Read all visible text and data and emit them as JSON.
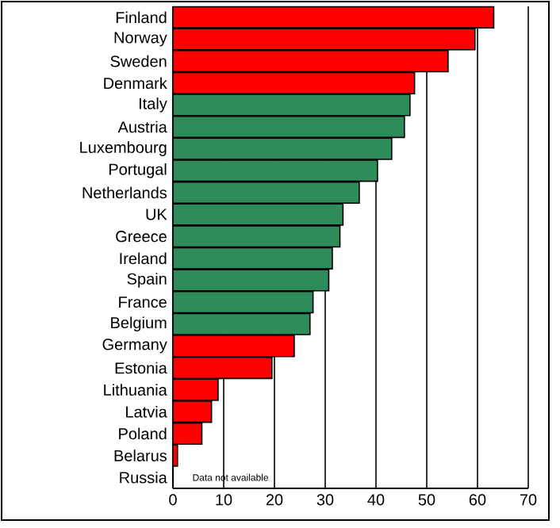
{
  "chart_data": {
    "type": "bar",
    "orientation": "horizontal",
    "categories": [
      "Finland",
      "Norway",
      "Sweden",
      "Denmark",
      "Italy",
      "Austria",
      "Luxembourg",
      "Portugal",
      "Netherlands",
      "UK",
      "Greece",
      "Ireland",
      "Spain",
      "France",
      "Belgium",
      "Germany",
      "Estonia",
      "Lithuania",
      "Latvia",
      "Poland",
      "Belarus",
      "Russia"
    ],
    "values": [
      63.2,
      59.5,
      54.2,
      47.6,
      46.7,
      45.6,
      43.1,
      40.3,
      36.7,
      33.5,
      32.9,
      31.4,
      30.7,
      27.6,
      27.0,
      23.9,
      19.5,
      8.9,
      7.6,
      5.7,
      0.9,
      null
    ],
    "colors": [
      "#ff0000",
      "#ff0000",
      "#ff0000",
      "#ff0000",
      "#2e8b5a",
      "#2e8b5a",
      "#2e8b5a",
      "#2e8b5a",
      "#2e8b5a",
      "#2e8b5a",
      "#2e8b5a",
      "#2e8b5a",
      "#2e8b5a",
      "#2e8b5a",
      "#2e8b5a",
      "#ff0000",
      "#ff0000",
      "#ff0000",
      "#ff0000",
      "#ff0000",
      "#ff0000",
      "#ff0000"
    ],
    "xlim": [
      0,
      70
    ],
    "xticks": [
      0,
      10,
      20,
      30,
      40,
      50,
      60,
      70
    ],
    "grid": "x",
    "annotations": [
      "Data not available"
    ]
  }
}
